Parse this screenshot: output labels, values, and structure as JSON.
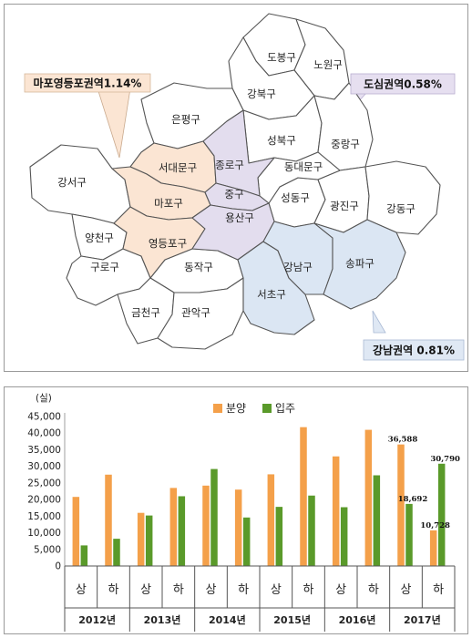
{
  "map": {
    "districts": [
      {
        "id": "dobong",
        "label": "도봉구",
        "region": "none"
      },
      {
        "id": "nowon",
        "label": "노원구",
        "region": "none"
      },
      {
        "id": "gangbuk",
        "label": "강북구",
        "region": "none"
      },
      {
        "id": "eunpyeong",
        "label": "은평구",
        "region": "none"
      },
      {
        "id": "seongbuk",
        "label": "성북구",
        "region": "none"
      },
      {
        "id": "jungnang",
        "label": "중랑구",
        "region": "none"
      },
      {
        "id": "seodaemun",
        "label": "서대문구",
        "region": "mapo-yeongdeungpo"
      },
      {
        "id": "jongno",
        "label": "종로구",
        "region": "downtown"
      },
      {
        "id": "dongdaemun",
        "label": "동대문구",
        "region": "none"
      },
      {
        "id": "gangseo",
        "label": "강서구",
        "region": "none"
      },
      {
        "id": "mapo",
        "label": "마포구",
        "region": "mapo-yeongdeungpo"
      },
      {
        "id": "jung",
        "label": "중구",
        "region": "downtown"
      },
      {
        "id": "seongdong",
        "label": "성동구",
        "region": "none"
      },
      {
        "id": "gwangjin",
        "label": "광진구",
        "region": "none"
      },
      {
        "id": "gangdong",
        "label": "강동구",
        "region": "none"
      },
      {
        "id": "yongsan",
        "label": "용산구",
        "region": "downtown"
      },
      {
        "id": "yangcheon",
        "label": "양천구",
        "region": "none"
      },
      {
        "id": "yeongdeungpo",
        "label": "영등포구",
        "region": "mapo-yeongdeungpo"
      },
      {
        "id": "guro",
        "label": "구로구",
        "region": "none"
      },
      {
        "id": "dongjak",
        "label": "동작구",
        "region": "none"
      },
      {
        "id": "gangnam",
        "label": "강남구",
        "region": "gangnam"
      },
      {
        "id": "songpa",
        "label": "송파구",
        "region": "gangnam"
      },
      {
        "id": "geumcheon",
        "label": "금천구",
        "region": "none"
      },
      {
        "id": "gwanak",
        "label": "관악구",
        "region": "none"
      },
      {
        "id": "seocho",
        "label": "서초구",
        "region": "gangnam"
      }
    ],
    "callouts": [
      {
        "id": "mapo-yeongdeungpo",
        "text": "마포영등포권역1.14%",
        "color": "#fbe5d3"
      },
      {
        "id": "downtown",
        "text": "도심권역0.58%",
        "color": "#e6dff0"
      },
      {
        "id": "gangnam",
        "text": "강남권역 0.81%",
        "color": "#dfe8f4"
      }
    ],
    "colors": {
      "mapo-yeongdeungpo": "#fbe5d3",
      "downtown": "#e3ddee",
      "gangnam": "#dbe6f3",
      "none": "#ffffff",
      "border": "#555555"
    }
  },
  "chart_data": {
    "type": "bar",
    "unit_label": "(실)",
    "ylim": [
      0,
      45000
    ],
    "yticks": [
      "0",
      "5,000",
      "10,000",
      "15,000",
      "20,000",
      "25,000",
      "30,000",
      "35,000",
      "40,000",
      "45,000"
    ],
    "categories": [
      "상",
      "하",
      "상",
      "하",
      "상",
      "하",
      "상",
      "하",
      "상",
      "하",
      "상",
      "하"
    ],
    "years": [
      "2012년",
      "2013년",
      "2014년",
      "2015년",
      "2016년",
      "2017년"
    ],
    "series": [
      {
        "name": "분양",
        "color": "#f4a04a",
        "values": [
          20800,
          27500,
          16000,
          23500,
          24200,
          23000,
          27600,
          41800,
          33000,
          41000,
          36588,
          10728
        ]
      },
      {
        "name": "입주",
        "color": "#5a9a2a",
        "values": [
          6200,
          8200,
          15200,
          21000,
          29200,
          14600,
          17800,
          21200,
          17700,
          27300,
          18692,
          30790
        ]
      }
    ],
    "data_labels": [
      {
        "series": 0,
        "index": 10,
        "text": "36,588"
      },
      {
        "series": 1,
        "index": 10,
        "text": "18,692"
      },
      {
        "series": 0,
        "index": 11,
        "text": "10,728"
      },
      {
        "series": 1,
        "index": 11,
        "text": "30,790"
      }
    ],
    "grid": false,
    "legend": "top-center"
  }
}
